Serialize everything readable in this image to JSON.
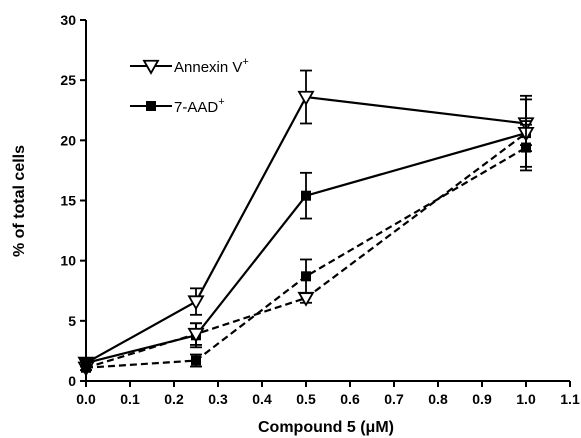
{
  "chart_data": {
    "type": "line",
    "title": "",
    "xlabel": "Compound 5 (μM)",
    "ylabel": "% of total cells",
    "xlim": [
      0,
      1.1
    ],
    "ylim": [
      0,
      30
    ],
    "xticks": [
      "0.0",
      "0.1",
      "0.2",
      "0.3",
      "0.4",
      "0.5",
      "0.6",
      "0.7",
      "0.8",
      "0.9",
      "1.0",
      "1.1"
    ],
    "yticks": [
      "0",
      "5",
      "10",
      "15",
      "20",
      "25",
      "30"
    ],
    "x": [
      0,
      0.25,
      0.5,
      1.0
    ],
    "legend_placement": "top-left",
    "grid": false,
    "series": [
      {
        "name": "Annexin V",
        "name_sup": "+",
        "marker": "open-triangle-down",
        "line": "solid",
        "values": [
          1.5,
          6.6,
          23.6,
          21.4
        ],
        "errors": [
          0.3,
          1.1,
          2.2,
          2.3
        ]
      },
      {
        "name": "7-AAD",
        "name_sup": "+",
        "marker": "filled-square",
        "line": "solid",
        "values": [
          1.5,
          3.8,
          15.4,
          20.6
        ],
        "errors": [
          0.3,
          1.0,
          1.9,
          2.8
        ]
      },
      {
        "marker": "open-triangle-down",
        "line": "dashed",
        "values": [
          1.1,
          3.9,
          6.9,
          20.6
        ],
        "errors": [
          0.2,
          0.9,
          0.4,
          1.0
        ]
      },
      {
        "marker": "filled-square",
        "line": "dashed",
        "values": [
          1.1,
          1.7,
          8.7,
          19.4
        ],
        "errors": [
          0.2,
          0.5,
          1.4,
          1.9
        ]
      }
    ]
  }
}
